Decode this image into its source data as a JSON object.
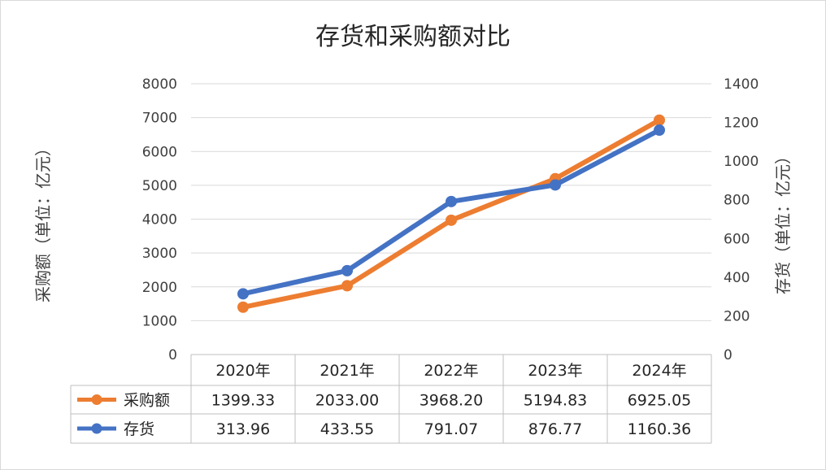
{
  "chart_data": {
    "type": "line",
    "title": "存货和采购额对比",
    "categories": [
      "2020年",
      "2021年",
      "2022年",
      "2023年",
      "2024年"
    ],
    "series": [
      {
        "name": "采购额",
        "axis": "left",
        "color": "#ED7D31",
        "values": [
          1399.33,
          2033.0,
          3968.2,
          5194.83,
          6925.05
        ],
        "labels": [
          "1399.33",
          "2033.00",
          "3968.20",
          "5194.83",
          "6925.05"
        ]
      },
      {
        "name": "存货",
        "axis": "right",
        "color": "#4472C4",
        "values": [
          313.96,
          433.55,
          791.07,
          876.77,
          1160.36
        ],
        "labels": [
          "313.96",
          "433.55",
          "791.07",
          "876.77",
          "1160.36"
        ]
      }
    ],
    "ylabel_left": "采购额（单位：亿元）",
    "ylabel_right": "存货（单位：亿元）",
    "ylim_left": [
      0,
      8000
    ],
    "yticks_left": [
      "0",
      "1000",
      "2000",
      "3000",
      "4000",
      "5000",
      "6000",
      "7000",
      "8000"
    ],
    "ylim_right": [
      0,
      1400
    ],
    "yticks_right": [
      "0",
      "200",
      "400",
      "600",
      "800",
      "1000",
      "1200",
      "1400"
    ],
    "grid": true,
    "legend": "data-table"
  }
}
